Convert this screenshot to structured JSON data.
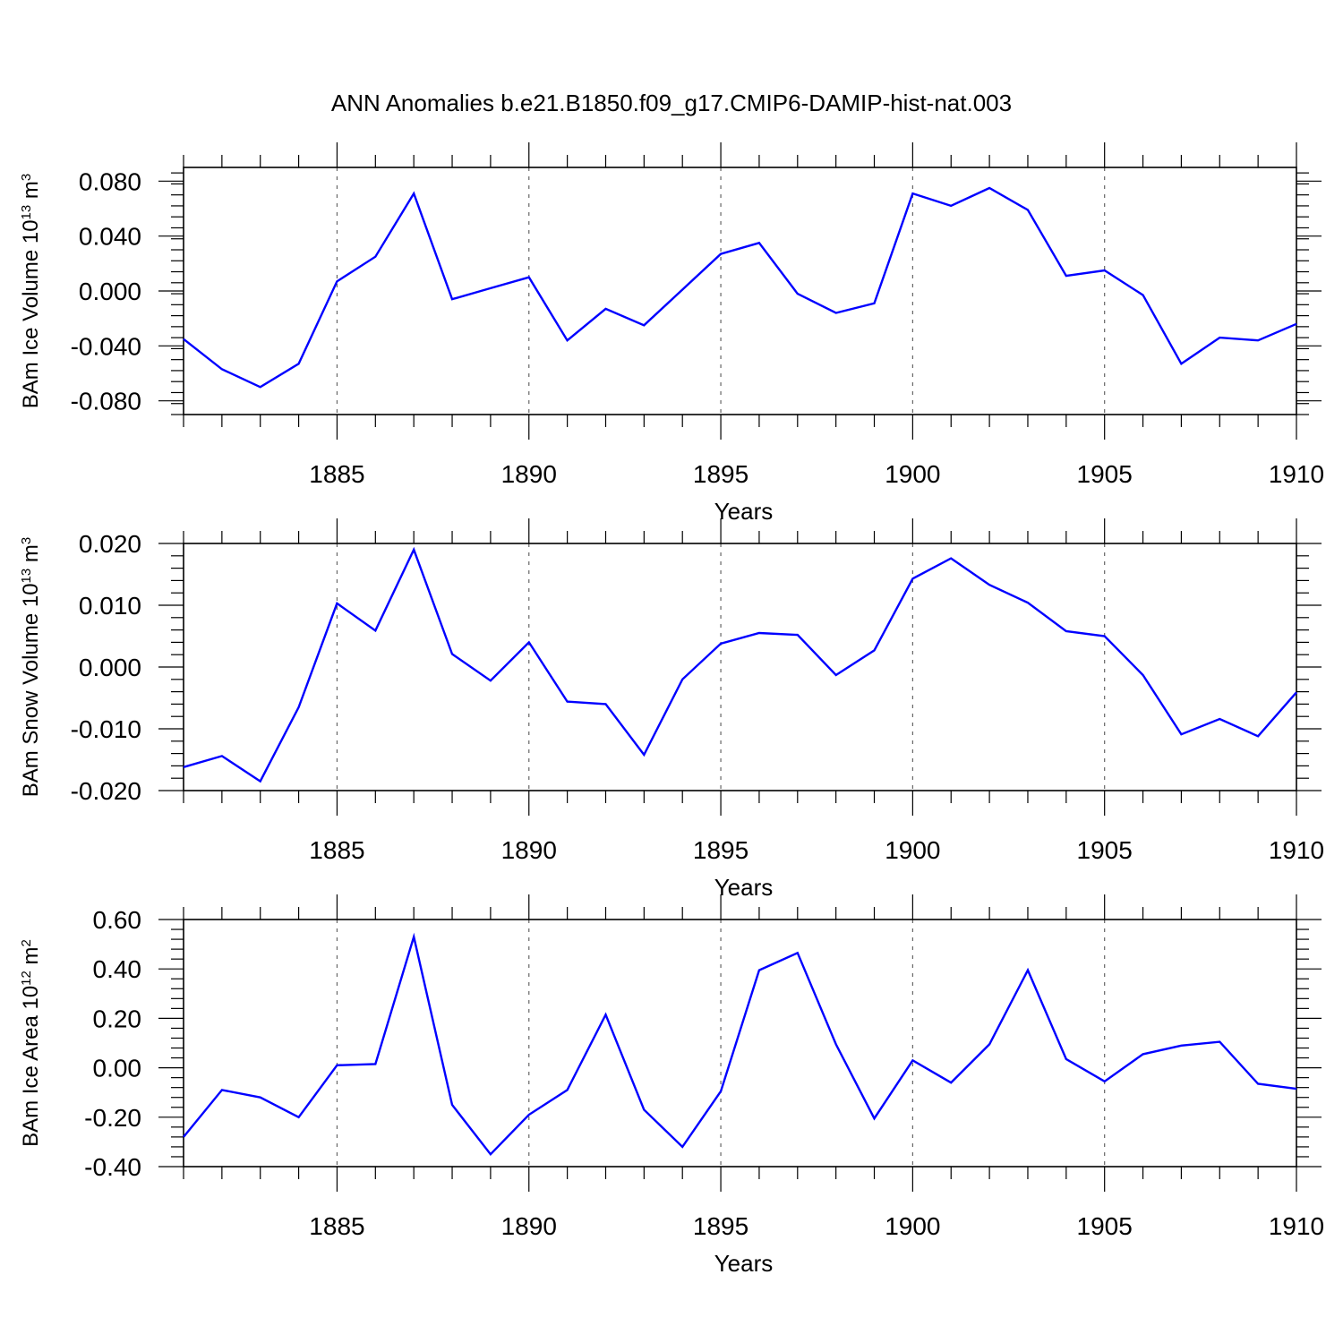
{
  "title": "ANN Anomalies b.e21.B1850.f09_g17.CMIP6-DAMIP-hist-nat.003",
  "colors": {
    "line": "#0000ff",
    "frame": "#000000",
    "grid": "#666666"
  },
  "chart_data": [
    {
      "type": "line",
      "ylabel": {
        "main": "BAm Ice Volume 10",
        "exp": "13",
        "unit": " m",
        "unit_exp": "3"
      },
      "xlabel": "Years",
      "xlim": [
        1881,
        1910
      ],
      "ylim": [
        -0.09,
        0.09
      ],
      "x_ticks": [
        1885,
        1890,
        1895,
        1900,
        1905,
        1910
      ],
      "y_ticks": [
        -0.08,
        -0.04,
        0.0,
        0.04,
        0.08
      ],
      "y_tick_labels": [
        "-0.080",
        "-0.040",
        "0.000",
        "0.040",
        "0.080"
      ],
      "x_grid": "dashed at major ticks",
      "series": [
        {
          "x": [
            1881,
            1882,
            1883,
            1884,
            1885,
            1886,
            1887,
            1888,
            1889,
            1890,
            1891,
            1892,
            1893,
            1894,
            1895,
            1896,
            1897,
            1898,
            1899,
            1900,
            1901,
            1902,
            1903,
            1904,
            1905,
            1906,
            1907,
            1908,
            1909,
            1910
          ],
          "values": [
            -0.035,
            -0.057,
            -0.07,
            -0.053,
            0.007,
            0.025,
            0.071,
            -0.006,
            0.002,
            0.01,
            -0.036,
            -0.013,
            -0.025,
            0.001,
            0.027,
            0.035,
            -0.002,
            -0.016,
            -0.009,
            0.071,
            0.062,
            0.075,
            0.059,
            0.011,
            0.015,
            -0.003,
            -0.053,
            -0.034,
            -0.036,
            -0.024
          ]
        }
      ]
    },
    {
      "type": "line",
      "ylabel": {
        "main": "BAm Snow Volume 10",
        "exp": "13",
        "unit": " m",
        "unit_exp": "3"
      },
      "xlabel": "Years",
      "xlim": [
        1881,
        1910
      ],
      "ylim": [
        -0.02,
        0.02
      ],
      "x_ticks": [
        1885,
        1890,
        1895,
        1900,
        1905,
        1910
      ],
      "y_ticks": [
        -0.02,
        -0.01,
        0.0,
        0.01,
        0.02
      ],
      "y_tick_labels": [
        "-0.020",
        "-0.010",
        "0.000",
        "0.010",
        "0.020"
      ],
      "x_grid": "dashed at major ticks",
      "series": [
        {
          "x": [
            1881,
            1882,
            1883,
            1884,
            1885,
            1886,
            1887,
            1888,
            1889,
            1890,
            1891,
            1892,
            1893,
            1894,
            1895,
            1896,
            1897,
            1898,
            1899,
            1900,
            1901,
            1902,
            1903,
            1904,
            1905,
            1906,
            1907,
            1908,
            1909,
            1910
          ],
          "values": [
            -0.0162,
            -0.0144,
            -0.0185,
            -0.0065,
            0.0103,
            0.0059,
            0.019,
            0.0021,
            -0.0022,
            0.004,
            -0.0056,
            -0.006,
            -0.0142,
            -0.002,
            0.0038,
            0.0055,
            0.0052,
            -0.0013,
            0.0027,
            0.0143,
            0.0176,
            0.0133,
            0.0104,
            0.0058,
            0.005,
            -0.0013,
            -0.0109,
            -0.0084,
            -0.0112,
            -0.0041
          ]
        }
      ]
    },
    {
      "type": "line",
      "ylabel": {
        "main": "BAm Ice Area 10",
        "exp": "12",
        "unit": " m",
        "unit_exp": "2"
      },
      "xlabel": "Years",
      "xlim": [
        1881,
        1910
      ],
      "ylim": [
        -0.4,
        0.6
      ],
      "x_ticks": [
        1885,
        1890,
        1895,
        1900,
        1905,
        1910
      ],
      "y_ticks": [
        -0.4,
        -0.2,
        0.0,
        0.2,
        0.4,
        0.6
      ],
      "y_tick_labels": [
        "-0.40",
        "-0.20",
        "0.00",
        "0.20",
        "0.40",
        "0.60"
      ],
      "x_grid": "dashed at major ticks",
      "series": [
        {
          "x": [
            1881,
            1882,
            1883,
            1884,
            1885,
            1886,
            1887,
            1888,
            1889,
            1890,
            1891,
            1892,
            1893,
            1894,
            1895,
            1896,
            1897,
            1898,
            1899,
            1900,
            1901,
            1902,
            1903,
            1904,
            1905,
            1906,
            1907,
            1908,
            1909,
            1910
          ],
          "values": [
            -0.28,
            -0.09,
            -0.12,
            -0.2,
            0.01,
            0.015,
            0.53,
            -0.15,
            -0.35,
            -0.19,
            -0.09,
            0.215,
            -0.17,
            -0.32,
            -0.095,
            0.395,
            0.465,
            0.095,
            -0.205,
            0.03,
            -0.06,
            0.095,
            0.395,
            0.035,
            -0.055,
            0.055,
            0.09,
            0.105,
            -0.065,
            -0.085
          ]
        }
      ]
    }
  ]
}
